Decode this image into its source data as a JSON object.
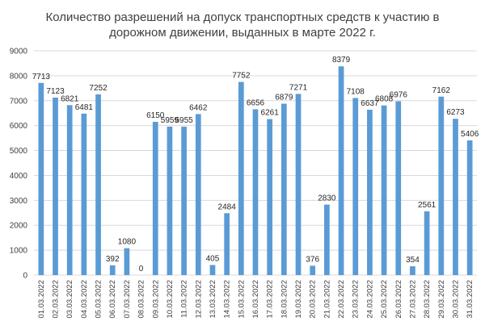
{
  "chart_data": {
    "type": "bar",
    "title_lines": [
      "Количество разрешений на допуск транспортных средств к участию в",
      "дорожном движении, выданных в марте 2022 г."
    ],
    "categories": [
      "01.03.2022",
      "02.03.2022",
      "03.03.2022",
      "04.03.2022",
      "05.03.2022",
      "06.03.2022",
      "07.03.2022",
      "08.03.2022",
      "09.03.2022",
      "10.03.2022",
      "11.03.2022",
      "12.03.2022",
      "13.03.2022",
      "14.03.2022",
      "15.03.2022",
      "16.03.2022",
      "17.03.2022",
      "18.03.2022",
      "19.03.2022",
      "20.03.2022",
      "21.03.2022",
      "22.03.2022",
      "23.03.2022",
      "24.03.2022",
      "25.03.2022",
      "26.03.2022",
      "27.03.2022",
      "28.03.2022",
      "29.03.2022",
      "30.03.2022",
      "31.03.2022"
    ],
    "values": [
      7713,
      7123,
      6821,
      6481,
      7252,
      392,
      1080,
      0,
      6150,
      5959,
      5955,
      6462,
      405,
      2484,
      7752,
      6656,
      6261,
      6879,
      7271,
      376,
      2830,
      8379,
      7108,
      6637,
      6808,
      6976,
      354,
      2561,
      7162,
      6273,
      5406
    ],
    "ylim": [
      0,
      9000
    ],
    "yticks": [
      0,
      1000,
      2000,
      3000,
      4000,
      5000,
      6000,
      7000,
      8000,
      9000
    ],
    "grid": true,
    "legend": "none",
    "bar_color": "#5b9bd5",
    "xlabel": "",
    "ylabel": ""
  }
}
